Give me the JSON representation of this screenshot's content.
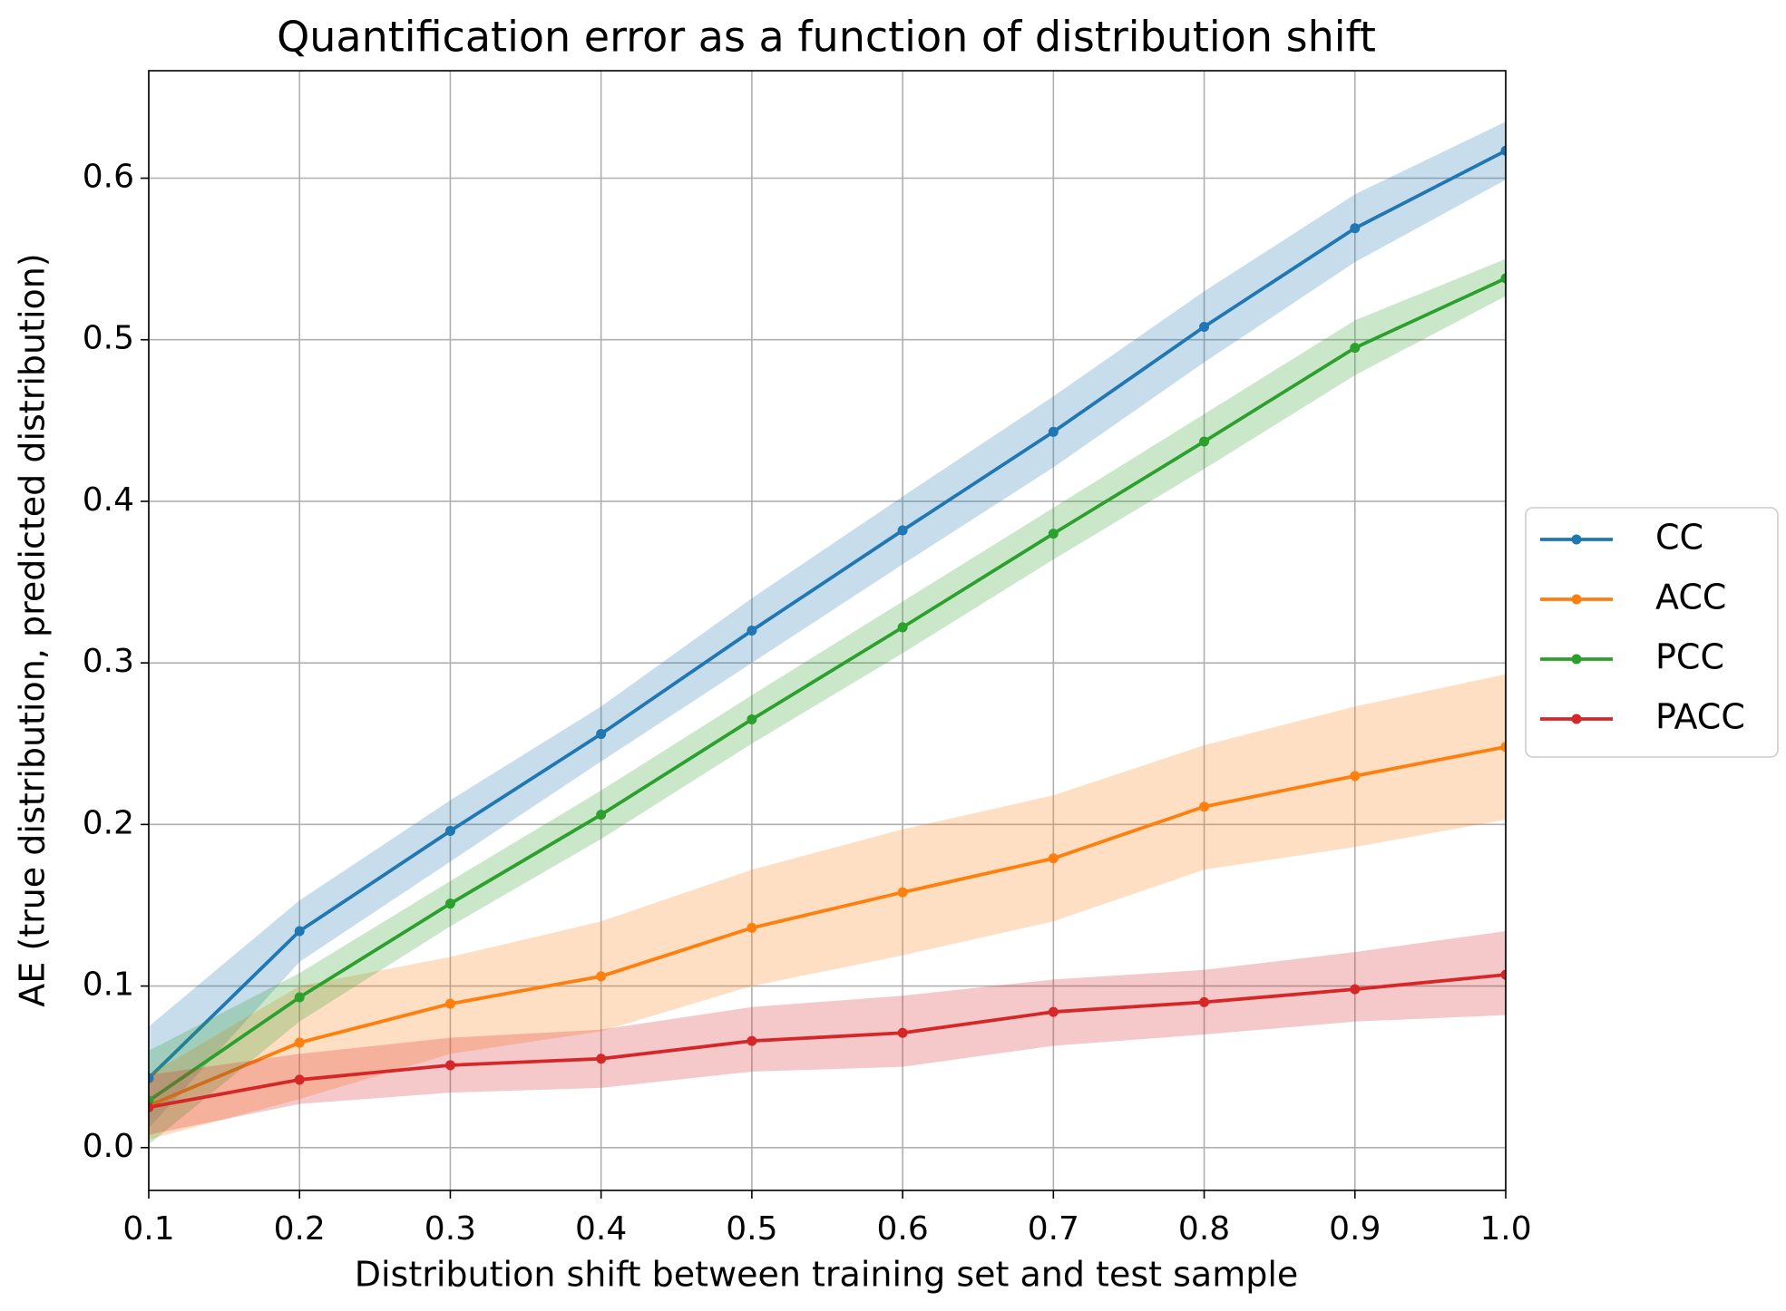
{
  "chart_data": {
    "type": "line",
    "title": "Quantification error as a function of distribution shift",
    "x_label": "Distribution shift between training set and test sample",
    "y_label": "AE (true distribution, predicted distribution)",
    "x": [
      0.1,
      0.2,
      0.3,
      0.4,
      0.5,
      0.6,
      0.7,
      0.8,
      0.9,
      1.0
    ],
    "series": [
      {
        "name": "CC",
        "color": "#1f77b4",
        "values": [
          0.043,
          0.134,
          0.196,
          0.256,
          0.32,
          0.382,
          0.443,
          0.508,
          0.569,
          0.617
        ],
        "upper": [
          0.075,
          0.153,
          0.215,
          0.273,
          0.34,
          0.403,
          0.465,
          0.53,
          0.59,
          0.635
        ],
        "lower": [
          0.012,
          0.115,
          0.177,
          0.239,
          0.3,
          0.361,
          0.421,
          0.486,
          0.548,
          0.599
        ]
      },
      {
        "name": "ACC",
        "color": "#ff7f0e",
        "values": [
          0.026,
          0.065,
          0.089,
          0.106,
          0.136,
          0.158,
          0.179,
          0.211,
          0.23,
          0.248
        ],
        "upper": [
          0.045,
          0.1,
          0.118,
          0.14,
          0.172,
          0.197,
          0.218,
          0.249,
          0.273,
          0.293
        ],
        "lower": [
          0.005,
          0.03,
          0.058,
          0.072,
          0.1,
          0.119,
          0.14,
          0.172,
          0.186,
          0.203
        ]
      },
      {
        "name": "PCC",
        "color": "#2ca02c",
        "values": [
          0.029,
          0.093,
          0.151,
          0.206,
          0.265,
          0.322,
          0.38,
          0.437,
          0.495,
          0.538
        ],
        "upper": [
          0.06,
          0.108,
          0.165,
          0.221,
          0.28,
          0.338,
          0.396,
          0.454,
          0.512,
          0.55
        ],
        "lower": [
          0.002,
          0.078,
          0.137,
          0.191,
          0.25,
          0.306,
          0.364,
          0.42,
          0.478,
          0.527
        ]
      },
      {
        "name": "PACC",
        "color": "#d62728",
        "values": [
          0.025,
          0.042,
          0.051,
          0.055,
          0.066,
          0.071,
          0.084,
          0.09,
          0.098,
          0.107
        ],
        "upper": [
          0.045,
          0.058,
          0.068,
          0.073,
          0.087,
          0.094,
          0.104,
          0.11,
          0.121,
          0.134
        ],
        "lower": [
          0.008,
          0.027,
          0.034,
          0.037,
          0.047,
          0.05,
          0.063,
          0.07,
          0.078,
          0.082
        ]
      }
    ],
    "xlim": [
      0.1,
      1.0
    ],
    "xticks": [
      0.1,
      0.2,
      0.3,
      0.4,
      0.5,
      0.6,
      0.7,
      0.8,
      0.9,
      {
        "value": 1.0,
        "label": "1.0"
      }
    ],
    "ylim": [
      -0.0265,
      0.6665
    ],
    "yticks": [
      {
        "value": 0,
        "label": "0.0"
      },
      0.1,
      0.2,
      0.3,
      0.4,
      0.5,
      0.6
    ],
    "grid": true,
    "legend": "right"
  }
}
